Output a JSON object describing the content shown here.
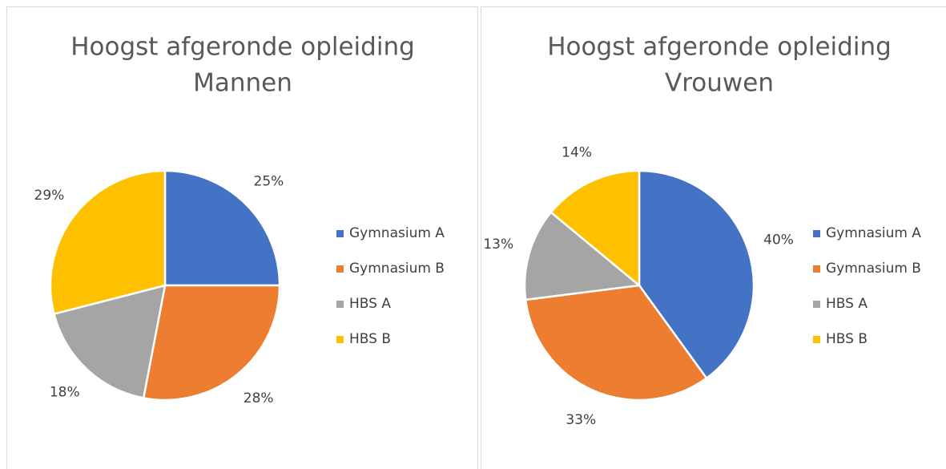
{
  "chart_data": [
    {
      "type": "pie",
      "title": "Hoogst afgeronde opleiding",
      "subtitle": "Mannen",
      "categories": [
        "Gymnasium A",
        "Gymnasium B",
        "HBS A",
        "HBS B"
      ],
      "values": [
        25,
        28,
        18,
        29
      ],
      "value_labels": [
        "25%",
        "28%",
        "18%",
        "29%"
      ],
      "colors": [
        "#4472c4",
        "#ed7d31",
        "#a5a5a5",
        "#ffc000"
      ],
      "legend": "right"
    },
    {
      "type": "pie",
      "title": "Hoogst afgeronde opleiding",
      "subtitle": "Vrouwen",
      "categories": [
        "Gymnasium A",
        "Gymnasium B",
        "HBS A",
        "HBS B"
      ],
      "values": [
        40,
        33,
        13,
        14
      ],
      "value_labels": [
        "40%",
        "33%",
        "13%",
        "14%"
      ],
      "colors": [
        "#4472c4",
        "#ed7d31",
        "#a5a5a5",
        "#ffc000"
      ],
      "legend": "right"
    }
  ]
}
